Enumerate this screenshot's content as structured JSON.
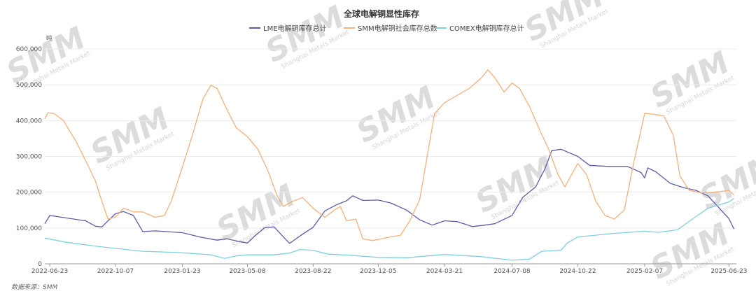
{
  "chart_data": {
    "type": "line",
    "title": "全球电解铜显性库存",
    "unit": "吨",
    "source": "数据来源：SMM",
    "watermark": {
      "big": "SMM",
      "small": "Shanghai Metals Market"
    },
    "ylim": [
      0,
      600000
    ],
    "yticks": [
      0,
      100000,
      200000,
      300000,
      400000,
      500000,
      600000
    ],
    "ytick_labels": [
      "0",
      "100,000",
      "200,000",
      "300,000",
      "400,000",
      "500,000",
      "600,000"
    ],
    "xlim": [
      "2022-06-15",
      "2025-07-05"
    ],
    "xtick_labels": [
      "2022-06-23",
      "2022-10-07",
      "2023-01-23",
      "2023-05-08",
      "2023-08-22",
      "2023-12-05",
      "2024-03-21",
      "2024-07-08",
      "2024-10-22",
      "2025-02-07",
      "2025-06-23"
    ],
    "grid": true,
    "legend_position": "top-center",
    "series": [
      {
        "name": "LME电解铜库存总计",
        "color": "#5b5ea6",
        "points": [
          [
            "2022-06-15",
            112000
          ],
          [
            "2022-06-23",
            135000
          ],
          [
            "2022-07-20",
            128000
          ],
          [
            "2022-08-20",
            120000
          ],
          [
            "2022-09-05",
            105000
          ],
          [
            "2022-09-15",
            103000
          ],
          [
            "2022-10-07",
            140000
          ],
          [
            "2022-10-20",
            146000
          ],
          [
            "2022-11-05",
            135000
          ],
          [
            "2022-11-20",
            90000
          ],
          [
            "2022-12-10",
            92000
          ],
          [
            "2023-01-23",
            87000
          ],
          [
            "2023-02-20",
            75000
          ],
          [
            "2023-03-20",
            66000
          ],
          [
            "2023-04-05",
            70000
          ],
          [
            "2023-04-20",
            64000
          ],
          [
            "2023-05-08",
            58000
          ],
          [
            "2023-05-20",
            78000
          ],
          [
            "2023-06-05",
            101000
          ],
          [
            "2023-06-20",
            103000
          ],
          [
            "2023-07-05",
            75000
          ],
          [
            "2023-07-15",
            57000
          ],
          [
            "2023-08-01",
            78000
          ],
          [
            "2023-08-22",
            102000
          ],
          [
            "2023-09-10",
            148000
          ],
          [
            "2023-09-30",
            166000
          ],
          [
            "2023-10-15",
            176000
          ],
          [
            "2023-10-25",
            190000
          ],
          [
            "2023-11-10",
            177000
          ],
          [
            "2023-12-05",
            178000
          ],
          [
            "2023-12-25",
            170000
          ],
          [
            "2024-01-20",
            150000
          ],
          [
            "2024-02-10",
            123000
          ],
          [
            "2024-03-01",
            108000
          ],
          [
            "2024-03-21",
            120000
          ],
          [
            "2024-04-10",
            118000
          ],
          [
            "2024-05-05",
            104000
          ],
          [
            "2024-05-25",
            108000
          ],
          [
            "2024-06-10",
            112000
          ],
          [
            "2024-07-08",
            135000
          ],
          [
            "2024-07-25",
            185000
          ],
          [
            "2024-08-15",
            215000
          ],
          [
            "2024-08-30",
            265000
          ],
          [
            "2024-09-10",
            316000
          ],
          [
            "2024-09-25",
            320000
          ],
          [
            "2024-10-22",
            300000
          ],
          [
            "2024-11-10",
            275000
          ],
          [
            "2024-12-10",
            272000
          ],
          [
            "2025-01-10",
            272000
          ],
          [
            "2025-02-01",
            255000
          ],
          [
            "2025-02-07",
            240000
          ],
          [
            "2025-02-12",
            268000
          ],
          [
            "2025-02-25",
            257000
          ],
          [
            "2025-03-20",
            225000
          ],
          [
            "2025-04-10",
            213000
          ],
          [
            "2025-05-01",
            205000
          ],
          [
            "2025-05-20",
            190000
          ],
          [
            "2025-06-05",
            160000
          ],
          [
            "2025-06-23",
            126000
          ],
          [
            "2025-07-01",
            97000
          ]
        ]
      },
      {
        "name": "SMM电解铜社会库存总数",
        "color": "#f5b07c",
        "points": [
          [
            "2022-06-15",
            405000
          ],
          [
            "2022-06-20",
            422000
          ],
          [
            "2022-06-30",
            420000
          ],
          [
            "2022-07-15",
            400000
          ],
          [
            "2022-08-05",
            340000
          ],
          [
            "2022-08-25",
            270000
          ],
          [
            "2022-09-05",
            230000
          ],
          [
            "2022-09-15",
            175000
          ],
          [
            "2022-09-25",
            125000
          ],
          [
            "2022-10-07",
            130000
          ],
          [
            "2022-10-20",
            155000
          ],
          [
            "2022-11-05",
            145000
          ],
          [
            "2022-11-20",
            145000
          ],
          [
            "2022-12-10",
            130000
          ],
          [
            "2022-12-25",
            135000
          ],
          [
            "2023-01-05",
            175000
          ],
          [
            "2023-01-23",
            270000
          ],
          [
            "2023-02-10",
            370000
          ],
          [
            "2023-02-25",
            460000
          ],
          [
            "2023-03-10",
            499000
          ],
          [
            "2023-03-20",
            490000
          ],
          [
            "2023-04-05",
            430000
          ],
          [
            "2023-04-20",
            380000
          ],
          [
            "2023-05-08",
            355000
          ],
          [
            "2023-05-25",
            320000
          ],
          [
            "2023-06-10",
            260000
          ],
          [
            "2023-06-25",
            190000
          ],
          [
            "2023-07-05",
            160000
          ],
          [
            "2023-07-20",
            175000
          ],
          [
            "2023-08-05",
            185000
          ],
          [
            "2023-08-22",
            155000
          ],
          [
            "2023-09-10",
            130000
          ],
          [
            "2023-09-25",
            150000
          ],
          [
            "2023-10-05",
            160000
          ],
          [
            "2023-10-15",
            120000
          ],
          [
            "2023-10-30",
            125000
          ],
          [
            "2023-11-10",
            70000
          ],
          [
            "2023-11-25",
            65000
          ],
          [
            "2023-12-05",
            68000
          ],
          [
            "2023-12-25",
            75000
          ],
          [
            "2024-01-10",
            80000
          ],
          [
            "2024-01-25",
            120000
          ],
          [
            "2024-02-10",
            180000
          ],
          [
            "2024-02-25",
            330000
          ],
          [
            "2024-03-05",
            420000
          ],
          [
            "2024-03-21",
            450000
          ],
          [
            "2024-04-10",
            470000
          ],
          [
            "2024-04-30",
            490000
          ],
          [
            "2024-05-20",
            520000
          ],
          [
            "2024-05-30",
            542000
          ],
          [
            "2024-06-10",
            520000
          ],
          [
            "2024-06-25",
            480000
          ],
          [
            "2024-07-08",
            505000
          ],
          [
            "2024-07-20",
            490000
          ],
          [
            "2024-08-05",
            440000
          ],
          [
            "2024-08-20",
            380000
          ],
          [
            "2024-09-05",
            320000
          ],
          [
            "2024-09-20",
            250000
          ],
          [
            "2024-10-01",
            215000
          ],
          [
            "2024-10-22",
            280000
          ],
          [
            "2024-11-05",
            250000
          ],
          [
            "2024-11-20",
            175000
          ],
          [
            "2024-12-05",
            135000
          ],
          [
            "2024-12-20",
            125000
          ],
          [
            "2025-01-05",
            150000
          ],
          [
            "2025-01-20",
            280000
          ],
          [
            "2025-02-07",
            420000
          ],
          [
            "2025-02-20",
            418000
          ],
          [
            "2025-03-10",
            413000
          ],
          [
            "2025-03-25",
            360000
          ],
          [
            "2025-04-05",
            245000
          ],
          [
            "2025-04-20",
            205000
          ],
          [
            "2025-05-10",
            198000
          ],
          [
            "2025-06-01",
            200000
          ],
          [
            "2025-06-23",
            205000
          ],
          [
            "2025-07-01",
            192000
          ]
        ]
      },
      {
        "name": "COMEX电解铜库存总计",
        "color": "#7fd0df",
        "points": [
          [
            "2022-06-15",
            72000
          ],
          [
            "2022-07-20",
            60000
          ],
          [
            "2022-09-01",
            50000
          ],
          [
            "2022-10-07",
            43000
          ],
          [
            "2022-11-20",
            35000
          ],
          [
            "2023-01-23",
            31000
          ],
          [
            "2023-03-10",
            25000
          ],
          [
            "2023-04-01",
            15000
          ],
          [
            "2023-04-20",
            22000
          ],
          [
            "2023-05-08",
            25000
          ],
          [
            "2023-06-20",
            25000
          ],
          [
            "2023-07-15",
            30000
          ],
          [
            "2023-08-01",
            40000
          ],
          [
            "2023-08-22",
            38000
          ],
          [
            "2023-09-15",
            27000
          ],
          [
            "2023-10-20",
            24000
          ],
          [
            "2023-12-05",
            18000
          ],
          [
            "2024-01-20",
            17000
          ],
          [
            "2024-03-21",
            26000
          ],
          [
            "2024-05-20",
            20000
          ],
          [
            "2024-07-08",
            10000
          ],
          [
            "2024-08-05",
            13000
          ],
          [
            "2024-08-25",
            35000
          ],
          [
            "2024-09-25",
            38000
          ],
          [
            "2024-10-05",
            58000
          ],
          [
            "2024-10-22",
            75000
          ],
          [
            "2024-11-20",
            80000
          ],
          [
            "2024-12-20",
            85000
          ],
          [
            "2025-02-07",
            91000
          ],
          [
            "2025-03-01",
            88000
          ],
          [
            "2025-04-01",
            95000
          ],
          [
            "2025-04-25",
            125000
          ],
          [
            "2025-05-20",
            155000
          ],
          [
            "2025-06-23",
            173000
          ],
          [
            "2025-07-01",
            183000
          ]
        ]
      }
    ]
  }
}
